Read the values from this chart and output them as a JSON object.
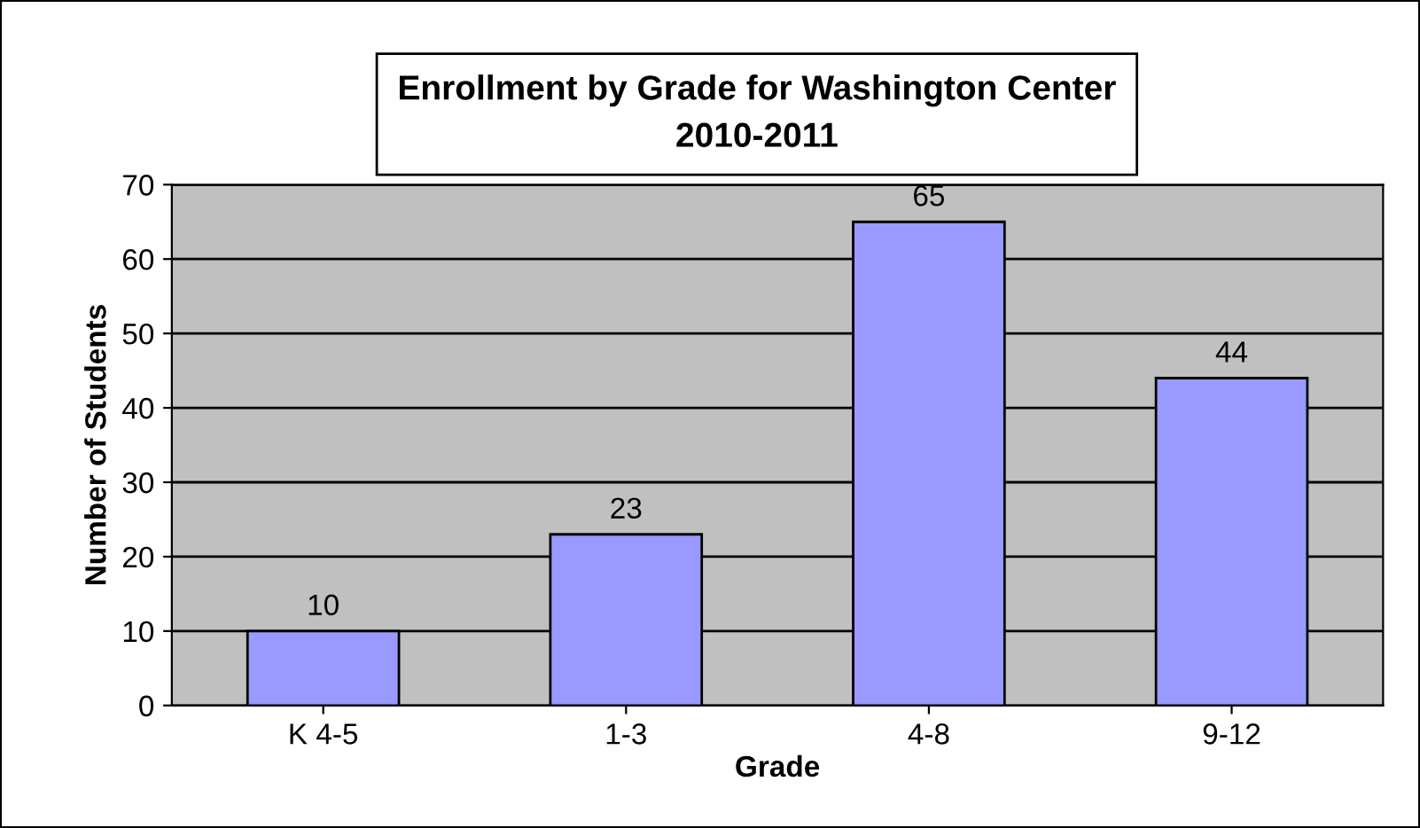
{
  "chart_data": {
    "type": "bar",
    "title": "Enrollment by Grade for Washington Center\n2010-2011",
    "xlabel": "Grade",
    "ylabel": "Number of Students",
    "categories": [
      "K 4-5",
      "1-3",
      "4-8",
      "9-12"
    ],
    "values": [
      10,
      23,
      65,
      44
    ],
    "color": "#9999ff",
    "ylim": [
      0,
      70
    ],
    "yticks": [
      0,
      10,
      20,
      30,
      40,
      50,
      60,
      70
    ],
    "grid": "y",
    "data_labels": true,
    "legend": false
  }
}
